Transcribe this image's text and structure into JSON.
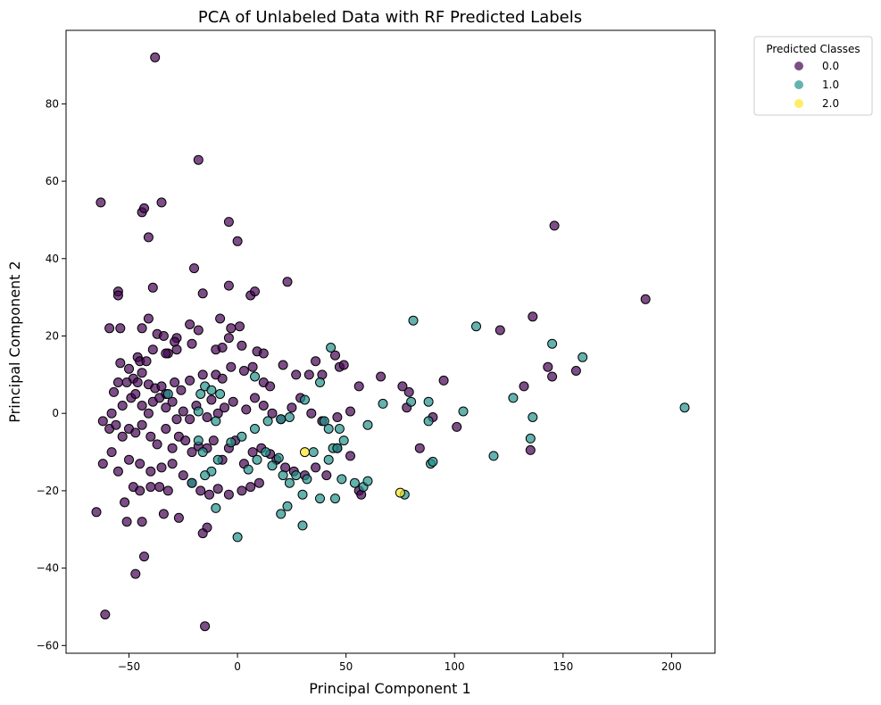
{
  "chart_data": {
    "type": "scatter",
    "title": "PCA of Unlabeled Data with RF Predicted Labels",
    "xlabel": "Principal Component 1",
    "ylabel": "Principal Component 2",
    "xlim": [
      -79,
      220
    ],
    "ylim": [
      -62,
      99
    ],
    "xticks": [
      -50,
      0,
      50,
      100,
      150,
      200
    ],
    "yticks": [
      -60,
      -40,
      -20,
      0,
      20,
      40,
      60,
      80
    ],
    "xtick_labels": [
      "−50",
      "0",
      "50",
      "100",
      "150",
      "200"
    ],
    "ytick_labels": [
      "−60",
      "−40",
      "−20",
      "0",
      "20",
      "40",
      "60",
      "80"
    ],
    "grid": false,
    "legend": {
      "title": "Predicted Classes",
      "placement": "outside-top-right",
      "entries": [
        "0.0",
        "1.0",
        "2.0"
      ]
    },
    "colors": {
      "0.0": "#440154",
      "1.0": "#21918c",
      "2.0": "#fde725"
    },
    "series": [
      {
        "name": "0.0",
        "points": [
          [
            -38,
            92
          ],
          [
            -18,
            65.5
          ],
          [
            -63,
            54.5
          ],
          [
            -35,
            54.5
          ],
          [
            -44,
            52
          ],
          [
            -43,
            53
          ],
          [
            -4,
            49.5
          ],
          [
            -41,
            45.5
          ],
          [
            146,
            48.5
          ],
          [
            0,
            44.5
          ],
          [
            -20,
            37.5
          ],
          [
            -39,
            32.5
          ],
          [
            -55,
            31.5
          ],
          [
            -55,
            30.5
          ],
          [
            -16,
            31
          ],
          [
            -4,
            33
          ],
          [
            6,
            30.5
          ],
          [
            8,
            31.5
          ],
          [
            23,
            34
          ],
          [
            -54,
            22
          ],
          [
            -59,
            22
          ],
          [
            -41,
            24.5
          ],
          [
            -8,
            24.5
          ],
          [
            -22,
            23
          ],
          [
            -37,
            20.5
          ],
          [
            -44,
            22
          ],
          [
            -34,
            20
          ],
          [
            -28,
            19.5
          ],
          [
            -21,
            18
          ],
          [
            -29,
            18.5
          ],
          [
            -18,
            21.5
          ],
          [
            -3,
            22
          ],
          [
            -4,
            19.5
          ],
          [
            1,
            22.5
          ],
          [
            -32,
            15.5
          ],
          [
            -28,
            16.5
          ],
          [
            -39,
            16.5
          ],
          [
            -33,
            15.5
          ],
          [
            -10,
            16.5
          ],
          [
            -7,
            17
          ],
          [
            2,
            17.5
          ],
          [
            9,
            16
          ],
          [
            12,
            15.5
          ],
          [
            -54,
            13
          ],
          [
            -50,
            11.5
          ],
          [
            -46,
            14.5
          ],
          [
            -45,
            13.5
          ],
          [
            -42,
            13.5
          ],
          [
            -44,
            10.5
          ],
          [
            -48,
            9
          ],
          [
            -57,
            5.5
          ],
          [
            -55,
            8
          ],
          [
            -51,
            8
          ],
          [
            -46,
            8
          ],
          [
            -41,
            7.5
          ],
          [
            -38,
            6.5
          ],
          [
            -35,
            7
          ],
          [
            -33,
            5
          ],
          [
            -29,
            8
          ],
          [
            -26,
            6
          ],
          [
            -22,
            8.5
          ],
          [
            -16,
            10
          ],
          [
            -10,
            10
          ],
          [
            -7,
            9
          ],
          [
            -3,
            12
          ],
          [
            3,
            11
          ],
          [
            7,
            12
          ],
          [
            12,
            8
          ],
          [
            15,
            7
          ],
          [
            21,
            12.5
          ],
          [
            27,
            10
          ],
          [
            33,
            10
          ],
          [
            36,
            13.5
          ],
          [
            39,
            10
          ],
          [
            45,
            15
          ],
          [
            47,
            12
          ],
          [
            49,
            12.5
          ],
          [
            56,
            7
          ],
          [
            66,
            9.5
          ],
          [
            76,
            7
          ],
          [
            79,
            5.5
          ],
          [
            95,
            8.5
          ],
          [
            136,
            25
          ],
          [
            121,
            21.5
          ],
          [
            188,
            29.5
          ],
          [
            143,
            12
          ],
          [
            145,
            9.5
          ],
          [
            156,
            11
          ],
          [
            132,
            7
          ],
          [
            -58,
            0
          ],
          [
            -53,
            2
          ],
          [
            -49,
            4
          ],
          [
            -47,
            5
          ],
          [
            -44,
            2
          ],
          [
            -41,
            0
          ],
          [
            -39,
            3
          ],
          [
            -36,
            4
          ],
          [
            -33,
            1.5
          ],
          [
            -30,
            3
          ],
          [
            -28,
            -1.5
          ],
          [
            -25,
            0.5
          ],
          [
            -22,
            -1.5
          ],
          [
            -19,
            2
          ],
          [
            -14,
            -1
          ],
          [
            -12,
            3.5
          ],
          [
            -9,
            0
          ],
          [
            -6,
            1.5
          ],
          [
            -2,
            3
          ],
          [
            4,
            1
          ],
          [
            8,
            4
          ],
          [
            12,
            2
          ],
          [
            16,
            0
          ],
          [
            20,
            -1.5
          ],
          [
            25,
            1.5
          ],
          [
            29,
            4
          ],
          [
            34,
            0
          ],
          [
            39,
            -2
          ],
          [
            46,
            -1
          ],
          [
            52,
            0.5
          ],
          [
            78,
            1.5
          ],
          [
            90,
            -1
          ],
          [
            101,
            -3.5
          ],
          [
            -62,
            -2
          ],
          [
            -59,
            -4
          ],
          [
            -56,
            -3
          ],
          [
            -53,
            -6
          ],
          [
            -50,
            -4
          ],
          [
            -47,
            -5
          ],
          [
            -44,
            -3
          ],
          [
            -40,
            -6
          ],
          [
            -37,
            -8
          ],
          [
            -33,
            -4
          ],
          [
            -30,
            -9
          ],
          [
            -27,
            -6
          ],
          [
            -24,
            -7
          ],
          [
            -21,
            -10
          ],
          [
            -18,
            -8.5
          ],
          [
            -14,
            -9
          ],
          [
            -11,
            -7
          ],
          [
            -7,
            -12
          ],
          [
            -4,
            -9
          ],
          [
            -1,
            -7
          ],
          [
            3,
            -13
          ],
          [
            7,
            -10
          ],
          [
            11,
            -9
          ],
          [
            15,
            -10.5
          ],
          [
            18,
            -12
          ],
          [
            22,
            -14
          ],
          [
            26,
            -15
          ],
          [
            31,
            -16
          ],
          [
            36,
            -14
          ],
          [
            41,
            -16
          ],
          [
            46,
            -9
          ],
          [
            52,
            -11
          ],
          [
            56,
            -20
          ],
          [
            57,
            -21
          ],
          [
            84,
            -9
          ],
          [
            135,
            -9.5
          ],
          [
            -62,
            -13
          ],
          [
            -58,
            -10
          ],
          [
            -55,
            -15
          ],
          [
            -50,
            -12
          ],
          [
            -45,
            -13
          ],
          [
            -40,
            -15
          ],
          [
            -35,
            -14
          ],
          [
            -30,
            -13
          ],
          [
            -25,
            -16
          ],
          [
            -21,
            -18
          ],
          [
            -17,
            -20
          ],
          [
            -13,
            -21
          ],
          [
            -9,
            -19.5
          ],
          [
            -4,
            -21
          ],
          [
            2,
            -20
          ],
          [
            6,
            -19
          ],
          [
            10,
            -18
          ],
          [
            -48,
            -19
          ],
          [
            -45,
            -20
          ],
          [
            -40,
            -19
          ],
          [
            -36,
            -19
          ],
          [
            -32,
            -20
          ],
          [
            -52,
            -23
          ],
          [
            -65,
            -25.5
          ],
          [
            -51,
            -28
          ],
          [
            -44,
            -28
          ],
          [
            -34,
            -26
          ],
          [
            -27,
            -27
          ],
          [
            -14,
            -29.5
          ],
          [
            -16,
            -31
          ],
          [
            -43,
            -37
          ],
          [
            -47,
            -41.5
          ],
          [
            -61,
            -52
          ],
          [
            -15,
            -55
          ]
        ]
      },
      {
        "name": "1.0",
        "points": [
          [
            81,
            24
          ],
          [
            110,
            22.5
          ],
          [
            145,
            18
          ],
          [
            159,
            14.5
          ],
          [
            206,
            1.5
          ],
          [
            43,
            17
          ],
          [
            38,
            8
          ],
          [
            -15,
            7
          ],
          [
            -12,
            6
          ],
          [
            -8,
            5
          ],
          [
            -17,
            5
          ],
          [
            8,
            9.5
          ],
          [
            127,
            4
          ],
          [
            104,
            0.5
          ],
          [
            88,
            3
          ],
          [
            80,
            3
          ],
          [
            67,
            2.5
          ],
          [
            -32,
            5
          ],
          [
            -18,
            0.5
          ],
          [
            -10,
            -2
          ],
          [
            2,
            -6
          ],
          [
            8,
            -4
          ],
          [
            14,
            -2
          ],
          [
            20,
            -1.5
          ],
          [
            24,
            -1
          ],
          [
            31,
            3.5
          ],
          [
            40,
            -2
          ],
          [
            42,
            -4
          ],
          [
            47,
            -4
          ],
          [
            49,
            -7
          ],
          [
            44,
            -9
          ],
          [
            46,
            -9
          ],
          [
            60,
            -3
          ],
          [
            88,
            -2
          ],
          [
            136,
            -1
          ],
          [
            135,
            -6.5
          ],
          [
            -18,
            -7
          ],
          [
            -16,
            -10
          ],
          [
            -12,
            -15
          ],
          [
            -9,
            -12
          ],
          [
            -3,
            -7.5
          ],
          [
            5,
            -14.5
          ],
          [
            9,
            -12
          ],
          [
            13,
            -10
          ],
          [
            16,
            -13.5
          ],
          [
            19,
            -11.5
          ],
          [
            21,
            -16
          ],
          [
            24,
            -18
          ],
          [
            27,
            -16
          ],
          [
            32,
            -17
          ],
          [
            35,
            -10
          ],
          [
            42,
            -12
          ],
          [
            45,
            -22
          ],
          [
            48,
            -17
          ],
          [
            54,
            -18
          ],
          [
            58,
            -19
          ],
          [
            60,
            -17.5
          ],
          [
            77,
            -21
          ],
          [
            89,
            -13
          ],
          [
            90,
            -12.5
          ],
          [
            118,
            -11
          ],
          [
            -21,
            -18
          ],
          [
            -15,
            -16
          ],
          [
            -10,
            -24.5
          ],
          [
            0,
            -32
          ],
          [
            20,
            -26
          ],
          [
            23,
            -24
          ],
          [
            30,
            -21
          ],
          [
            30,
            -29
          ],
          [
            38,
            -22
          ]
        ]
      },
      {
        "name": "2.0",
        "points": [
          [
            31,
            -10
          ],
          [
            75,
            -20.5
          ]
        ]
      }
    ]
  }
}
